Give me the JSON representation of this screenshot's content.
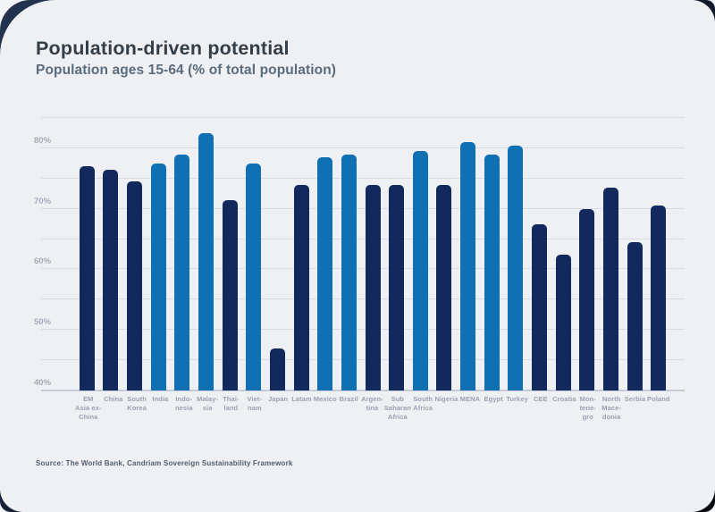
{
  "page": {
    "title": "Population-driven potential",
    "subtitle": "Population ages 15-64 (% of total population)",
    "source": "Source: The World Bank, Candriam Sovereign Sustainability Framework"
  },
  "colors": {
    "navy": "#12295e",
    "blue": "#1070b4",
    "card_bg": "#eff0f4",
    "backdrop_dark": "#16203a",
    "gridline": "#d9dce3",
    "axis_line": "#c6cad4",
    "title_text": "#333e48",
    "subtitle_text": "#5a6c7c",
    "axis_label_text": "#a5abb9",
    "x_label_text": "#9aa1b0",
    "source_text": "#4e5c6b"
  },
  "chart_data": {
    "type": "bar",
    "title": "Population-driven potential",
    "subtitle": "Population ages 15-64 (% of total population)",
    "xlabel": "",
    "ylabel": "",
    "ylim": [
      40,
      85
    ],
    "ytick_minor_step": 5,
    "yticks_labeled": [
      40,
      50,
      60,
      70,
      80
    ],
    "ytick_suffix": "%",
    "grid": true,
    "legend": false,
    "bars": [
      {
        "name": "EM Asia ex-China",
        "lines": [
          "EM",
          "Asia ex-",
          "China"
        ],
        "value": 77,
        "color": "navy"
      },
      {
        "name": "China",
        "lines": [
          "China"
        ],
        "value": 76.5,
        "color": "navy"
      },
      {
        "name": "South Korea",
        "lines": [
          "South",
          "Korea"
        ],
        "value": 74.5,
        "color": "navy"
      },
      {
        "name": "India",
        "lines": [
          "India"
        ],
        "value": 77.5,
        "color": "blue"
      },
      {
        "name": "Indonesia",
        "lines": [
          "Indo-",
          "nesia"
        ],
        "value": 79,
        "color": "blue"
      },
      {
        "name": "Malaysia",
        "lines": [
          "Malay-",
          "sia"
        ],
        "value": 82.5,
        "color": "blue"
      },
      {
        "name": "Thailand",
        "lines": [
          "Thai-",
          "land"
        ],
        "value": 71.5,
        "color": "navy"
      },
      {
        "name": "Vietnam",
        "lines": [
          "Viet-",
          "nam"
        ],
        "value": 77.5,
        "color": "blue"
      },
      {
        "name": "Japan",
        "lines": [
          "Japan"
        ],
        "value": 47,
        "color": "navy"
      },
      {
        "name": "Latam",
        "lines": [
          "Latam"
        ],
        "value": 74,
        "color": "navy"
      },
      {
        "name": "Mexico",
        "lines": [
          "Mexico"
        ],
        "value": 78.5,
        "color": "blue"
      },
      {
        "name": "Brazil",
        "lines": [
          "Brazil"
        ],
        "value": 79,
        "color": "blue"
      },
      {
        "name": "Argentina",
        "lines": [
          "Argen-",
          "tina"
        ],
        "value": 74,
        "color": "navy"
      },
      {
        "name": "Sub Saharan Africa",
        "lines": [
          "Sub",
          "Saharan",
          "Africa"
        ],
        "value": 74,
        "color": "navy"
      },
      {
        "name": "South Africa",
        "lines": [
          "South",
          "Africa"
        ],
        "value": 79.5,
        "color": "blue"
      },
      {
        "name": "Nigeria",
        "lines": [
          "Nigeria"
        ],
        "value": 74,
        "color": "navy"
      },
      {
        "name": "MENA",
        "lines": [
          "MENA"
        ],
        "value": 81,
        "color": "blue"
      },
      {
        "name": "Egypt",
        "lines": [
          "Egypt"
        ],
        "value": 79,
        "color": "blue"
      },
      {
        "name": "Turkey",
        "lines": [
          "Turkey"
        ],
        "value": 80.5,
        "color": "blue"
      },
      {
        "name": "CEE",
        "lines": [
          "CEE"
        ],
        "value": 67.5,
        "color": "navy"
      },
      {
        "name": "Croatia",
        "lines": [
          "Croatia"
        ],
        "value": 62.5,
        "color": "navy"
      },
      {
        "name": "Montenegro",
        "lines": [
          "Mon-",
          "tene-",
          "gro"
        ],
        "value": 70,
        "color": "navy"
      },
      {
        "name": "North Macedonia",
        "lines": [
          "North",
          "Mace-",
          "donia"
        ],
        "value": 73.5,
        "color": "navy"
      },
      {
        "name": "Serbia",
        "lines": [
          "Serbia"
        ],
        "value": 64.5,
        "color": "navy"
      },
      {
        "name": "Poland",
        "lines": [
          "Poland"
        ],
        "value": 70.5,
        "color": "navy"
      }
    ]
  }
}
